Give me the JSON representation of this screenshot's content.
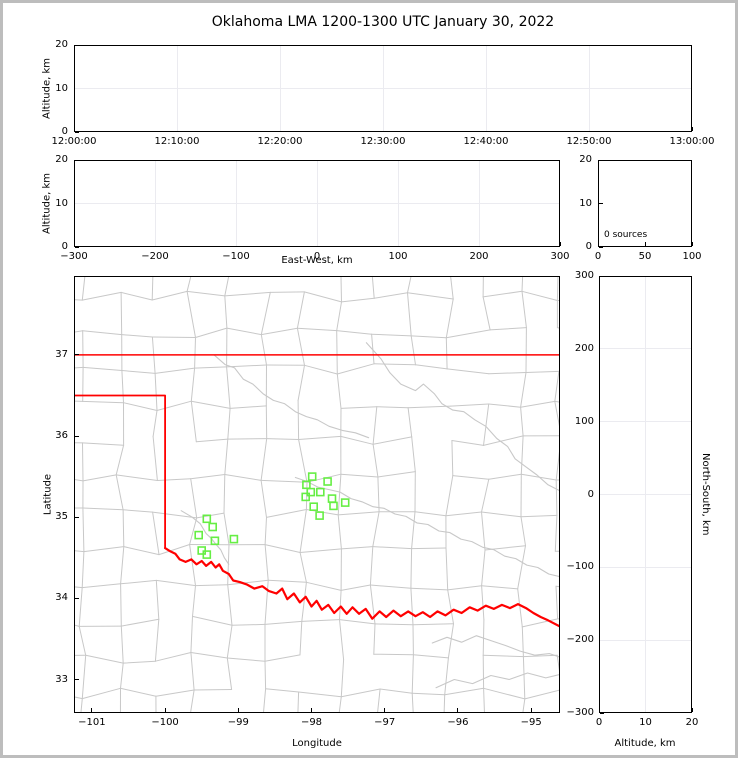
{
  "title": "Oklahoma LMA 1200-1300 UTC January 30, 2022",
  "colors": {
    "background": "#ffffff",
    "frame": "#bdbdbd",
    "axis": "#000000",
    "grid": "#ebebf0",
    "county": "#c8c8c8",
    "river": "#c8c8c8",
    "state_border": "#ff0000",
    "station": "#66ee44"
  },
  "panels": {
    "time_altitude": {
      "ylabel": "Altitude, km",
      "ytick_labels": [
        "0",
        "10",
        "20"
      ],
      "xtick_labels": [
        "12:00:00",
        "12:10:00",
        "12:20:00",
        "12:30:00",
        "12:40:00",
        "12:50:00",
        "13:00:00"
      ]
    },
    "ew_altitude": {
      "ylabel": "Altitude, km",
      "xlabel": "East-West, km",
      "ytick_labels": [
        "0",
        "10",
        "20"
      ],
      "xtick_labels": [
        "−300",
        "−200",
        "−100",
        "0",
        "100",
        "200",
        "300"
      ]
    },
    "alt_histogram": {
      "annotation": "0 sources",
      "ytick_labels": [
        "0",
        "10",
        "20"
      ],
      "xtick_labels": [
        "0",
        "50",
        "100"
      ]
    },
    "map": {
      "xlabel": "Longitude",
      "ylabel": "Latitude",
      "xticks": [
        -101,
        -100,
        -99,
        -98,
        -97,
        -96,
        -95
      ],
      "xtick_labels": [
        "−101",
        "−100",
        "−99",
        "−98",
        "−97",
        "−96",
        "−95"
      ],
      "yticks": [
        37,
        36,
        35,
        34,
        33
      ],
      "ytick_labels": [
        "37",
        "36",
        "35",
        "34",
        "33"
      ],
      "lon_range": [
        -101.23,
        -94.62
      ],
      "lat_range": [
        32.6,
        37.96
      ]
    },
    "ns_altitude": {
      "xlabel": "Altitude, km",
      "ylabel": "North-South, km",
      "ytick_labels": [
        "300",
        "200",
        "100",
        "0",
        "−100",
        "−200",
        "−300"
      ],
      "xtick_labels": [
        "0",
        "10",
        "20"
      ]
    }
  },
  "chart_data": {
    "type": "scatter",
    "title": "Oklahoma LMA 1200-1300 UTC January 30, 2022",
    "time_axis_range": [
      "12:00:00",
      "13:00:00"
    ],
    "altitude_range_km": [
      0,
      20
    ],
    "east_west_range_km": [
      -300,
      300
    ],
    "north_south_range_km": [
      -300,
      300
    ],
    "histogram_count_range": [
      0,
      100
    ],
    "source_count_label": "0 sources",
    "lightning_sources": [],
    "stations": {
      "marker": "open-square",
      "color": "#66ee44",
      "points": [
        [
          -97.99,
          35.5
        ],
        [
          -97.78,
          35.44
        ],
        [
          -98.07,
          35.4
        ],
        [
          -98.01,
          35.31
        ],
        [
          -97.88,
          35.31
        ],
        [
          -98.08,
          35.25
        ],
        [
          -97.72,
          35.23
        ],
        [
          -97.54,
          35.18
        ],
        [
          -97.97,
          35.13
        ],
        [
          -97.7,
          35.14
        ],
        [
          -97.89,
          35.02
        ],
        [
          -99.43,
          34.98
        ],
        [
          -99.35,
          34.88
        ],
        [
          -99.54,
          34.78
        ],
        [
          -99.32,
          34.71
        ],
        [
          -99.06,
          34.73
        ],
        [
          -99.5,
          34.59
        ],
        [
          -99.43,
          34.54
        ]
      ]
    },
    "state_borders": [
      {
        "name": "kansas-oklahoma-border",
        "width": 1.5,
        "points": [
          [
            -101.23,
            37.0
          ],
          [
            -94.62,
            37.0
          ]
        ]
      },
      {
        "name": "panhandle-border",
        "width": 1.8,
        "points": [
          [
            -101.23,
            36.5
          ],
          [
            -100.0,
            36.5
          ],
          [
            -100.0,
            34.62
          ]
        ]
      },
      {
        "name": "red-river-border",
        "width": 2.2,
        "points": [
          [
            -100.0,
            34.62
          ],
          [
            -99.93,
            34.58
          ],
          [
            -99.86,
            34.55
          ],
          [
            -99.8,
            34.48
          ],
          [
            -99.72,
            34.45
          ],
          [
            -99.64,
            34.48
          ],
          [
            -99.57,
            34.42
          ],
          [
            -99.5,
            34.46
          ],
          [
            -99.44,
            34.4
          ],
          [
            -99.37,
            34.45
          ],
          [
            -99.31,
            34.38
          ],
          [
            -99.26,
            34.42
          ],
          [
            -99.21,
            34.34
          ],
          [
            -99.13,
            34.3
          ],
          [
            -99.07,
            34.22
          ],
          [
            -98.98,
            34.2
          ],
          [
            -98.88,
            34.17
          ],
          [
            -98.78,
            34.12
          ],
          [
            -98.67,
            34.15
          ],
          [
            -98.58,
            34.09
          ],
          [
            -98.48,
            34.06
          ],
          [
            -98.4,
            34.12
          ],
          [
            -98.33,
            33.99
          ],
          [
            -98.24,
            34.06
          ],
          [
            -98.16,
            33.95
          ],
          [
            -98.08,
            34.02
          ],
          [
            -98.0,
            33.9
          ],
          [
            -97.93,
            33.97
          ],
          [
            -97.86,
            33.86
          ],
          [
            -97.77,
            33.92
          ],
          [
            -97.69,
            33.82
          ],
          [
            -97.6,
            33.9
          ],
          [
            -97.52,
            33.81
          ],
          [
            -97.44,
            33.89
          ],
          [
            -97.35,
            33.81
          ],
          [
            -97.26,
            33.87
          ],
          [
            -97.17,
            33.75
          ],
          [
            -97.07,
            33.84
          ],
          [
            -96.98,
            33.77
          ],
          [
            -96.88,
            33.85
          ],
          [
            -96.78,
            33.78
          ],
          [
            -96.68,
            33.84
          ],
          [
            -96.58,
            33.78
          ],
          [
            -96.48,
            33.83
          ],
          [
            -96.38,
            33.77
          ],
          [
            -96.28,
            33.84
          ],
          [
            -96.17,
            33.79
          ],
          [
            -96.06,
            33.86
          ],
          [
            -95.95,
            33.82
          ],
          [
            -95.84,
            33.89
          ],
          [
            -95.73,
            33.85
          ],
          [
            -95.62,
            33.91
          ],
          [
            -95.51,
            33.87
          ],
          [
            -95.4,
            33.92
          ],
          [
            -95.29,
            33.88
          ],
          [
            -95.18,
            33.93
          ],
          [
            -95.07,
            33.88
          ],
          [
            -94.97,
            33.82
          ],
          [
            -94.87,
            33.77
          ],
          [
            -94.77,
            33.73
          ],
          [
            -94.62,
            33.66
          ]
        ]
      }
    ],
    "rivers": [
      [
        [
          -99.33,
          37.0
        ],
        [
          -99.18,
          36.88
        ],
        [
          -99.05,
          36.84
        ],
        [
          -98.93,
          36.7
        ],
        [
          -98.8,
          36.64
        ],
        [
          -98.66,
          36.52
        ],
        [
          -98.52,
          36.44
        ],
        [
          -98.37,
          36.4
        ],
        [
          -98.22,
          36.3
        ],
        [
          -98.07,
          36.24
        ],
        [
          -97.92,
          36.2
        ],
        [
          -97.76,
          36.12
        ],
        [
          -97.58,
          36.07
        ],
        [
          -97.4,
          36.04
        ],
        [
          -97.22,
          35.98
        ]
      ],
      [
        [
          -97.25,
          37.15
        ],
        [
          -97.05,
          36.95
        ],
        [
          -96.93,
          36.78
        ],
        [
          -96.78,
          36.64
        ],
        [
          -96.58,
          36.56
        ],
        [
          -96.47,
          36.64
        ],
        [
          -96.32,
          36.52
        ],
        [
          -96.22,
          36.4
        ],
        [
          -96.07,
          36.32
        ],
        [
          -95.92,
          36.3
        ],
        [
          -95.77,
          36.2
        ],
        [
          -95.62,
          36.12
        ],
        [
          -95.47,
          35.97
        ],
        [
          -95.32,
          35.87
        ],
        [
          -95.22,
          35.72
        ],
        [
          -95.07,
          35.62
        ],
        [
          -94.92,
          35.52
        ],
        [
          -94.77,
          35.4
        ],
        [
          -94.62,
          35.33
        ]
      ],
      [
        [
          -98.22,
          35.49
        ],
        [
          -98.06,
          35.44
        ],
        [
          -97.91,
          35.37
        ],
        [
          -97.76,
          35.34
        ],
        [
          -97.61,
          35.31
        ],
        [
          -97.46,
          35.23
        ],
        [
          -97.31,
          35.19
        ],
        [
          -97.16,
          35.13
        ],
        [
          -97.01,
          35.11
        ],
        [
          -96.86,
          35.04
        ],
        [
          -96.71,
          35.01
        ],
        [
          -96.56,
          34.93
        ],
        [
          -96.41,
          34.91
        ],
        [
          -96.26,
          34.83
        ],
        [
          -96.11,
          34.81
        ],
        [
          -95.96,
          34.73
        ],
        [
          -95.81,
          34.7
        ],
        [
          -95.66,
          34.63
        ],
        [
          -95.51,
          34.6
        ],
        [
          -95.36,
          34.52
        ],
        [
          -95.21,
          34.49
        ],
        [
          -95.06,
          34.41
        ],
        [
          -94.91,
          34.38
        ],
        [
          -94.76,
          34.3
        ],
        [
          -94.62,
          34.27
        ]
      ],
      [
        [
          -99.78,
          35.08
        ],
        [
          -99.63,
          35.0
        ],
        [
          -99.52,
          34.92
        ],
        [
          -99.44,
          34.8
        ],
        [
          -99.37,
          34.74
        ],
        [
          -99.3,
          34.66
        ],
        [
          -99.24,
          34.6
        ],
        [
          -99.19,
          34.5
        ],
        [
          -99.13,
          34.42
        ]
      ],
      [
        [
          -96.35,
          33.45
        ],
        [
          -96.15,
          33.52
        ],
        [
          -95.95,
          33.46
        ],
        [
          -95.75,
          33.54
        ],
        [
          -95.55,
          33.48
        ],
        [
          -95.35,
          33.42
        ],
        [
          -95.15,
          33.35
        ],
        [
          -94.95,
          33.3
        ],
        [
          -94.75,
          33.32
        ],
        [
          -94.62,
          33.28
        ]
      ],
      [
        [
          -96.3,
          32.9
        ],
        [
          -96.05,
          33.0
        ],
        [
          -95.8,
          32.95
        ],
        [
          -95.55,
          33.05
        ],
        [
          -95.3,
          33.0
        ],
        [
          -95.05,
          33.08
        ],
        [
          -94.8,
          33.02
        ],
        [
          -94.62,
          33.06
        ]
      ]
    ],
    "county_grid": {
      "lon_start": -101.63,
      "lon_step": 0.5,
      "cols": 16,
      "lat_start": 32.38,
      "lat_step": 0.445,
      "rows": 14,
      "jitter": 0.14,
      "skip": 0.13,
      "seed": 9
    }
  }
}
